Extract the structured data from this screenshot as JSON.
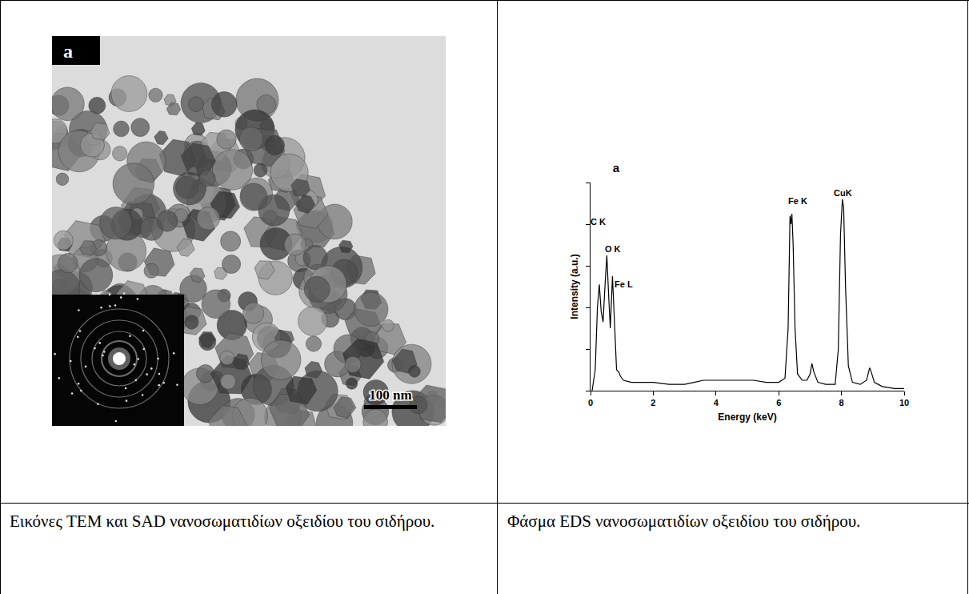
{
  "left_panel": {
    "panel_label": "a",
    "scale_bar": "100 nm"
  },
  "chart_data": {
    "type": "line",
    "title": "a",
    "x_label": "Energy (keV)",
    "y_label": "Intensity (a.u.)",
    "x": [
      0.05,
      0.15,
      0.22,
      0.28,
      0.34,
      0.4,
      0.46,
      0.52,
      0.58,
      0.63,
      0.7,
      0.76,
      0.83,
      0.9,
      0.95,
      1.05,
      1.3,
      1.6,
      2.0,
      2.5,
      3.0,
      3.3,
      3.6,
      4.0,
      4.4,
      4.8,
      5.2,
      5.6,
      6.0,
      6.2,
      6.3,
      6.36,
      6.39,
      6.42,
      6.46,
      6.52,
      6.6,
      6.75,
      6.9,
      7.0,
      7.06,
      7.12,
      7.25,
      7.5,
      7.8,
      7.9,
      7.97,
      8.03,
      8.07,
      8.13,
      8.22,
      8.35,
      8.6,
      8.8,
      8.86,
      8.9,
      8.95,
      9.05,
      9.3,
      9.7,
      10.0
    ],
    "values": [
      0,
      10,
      40,
      51,
      38,
      33,
      50,
      65,
      45,
      30,
      55,
      35,
      10,
      9,
      7,
      5,
      4,
      4,
      4,
      3,
      3,
      4,
      5,
      5,
      5,
      5,
      5,
      4,
      4,
      6,
      30,
      84,
      80,
      85,
      70,
      30,
      8,
      5,
      5,
      8,
      13,
      9,
      4,
      3,
      3,
      20,
      75,
      92,
      88,
      50,
      12,
      4,
      3,
      5,
      9,
      11,
      9,
      4,
      2,
      1,
      1
    ],
    "color": "#000000",
    "xlim": [
      0,
      10
    ],
    "xticks": [
      0,
      2,
      4,
      6,
      8,
      10
    ],
    "ylim": [
      0,
      100
    ],
    "yticks": [
      0,
      20,
      40,
      60,
      80,
      100
    ],
    "tick_labels": "x",
    "grid": false,
    "annotations": [
      {
        "text": "C K",
        "x": 0.25,
        "y": 81
      },
      {
        "text": "O K",
        "x": 0.72,
        "y": 68
      },
      {
        "text": "Fe L",
        "x": 1.05,
        "y": 51
      },
      {
        "text": "Fe K",
        "x": 6.6,
        "y": 91
      },
      {
        "text": "CuK",
        "x": 8.05,
        "y": 95
      }
    ]
  },
  "captions": [
    "Εικόνες TEM και SAD νανοσωματιδίων οξειδίου του σιδήρου.",
    "Φάσμα EDS νανοσωματιδίων οξειδίου του σιδήρου."
  ]
}
